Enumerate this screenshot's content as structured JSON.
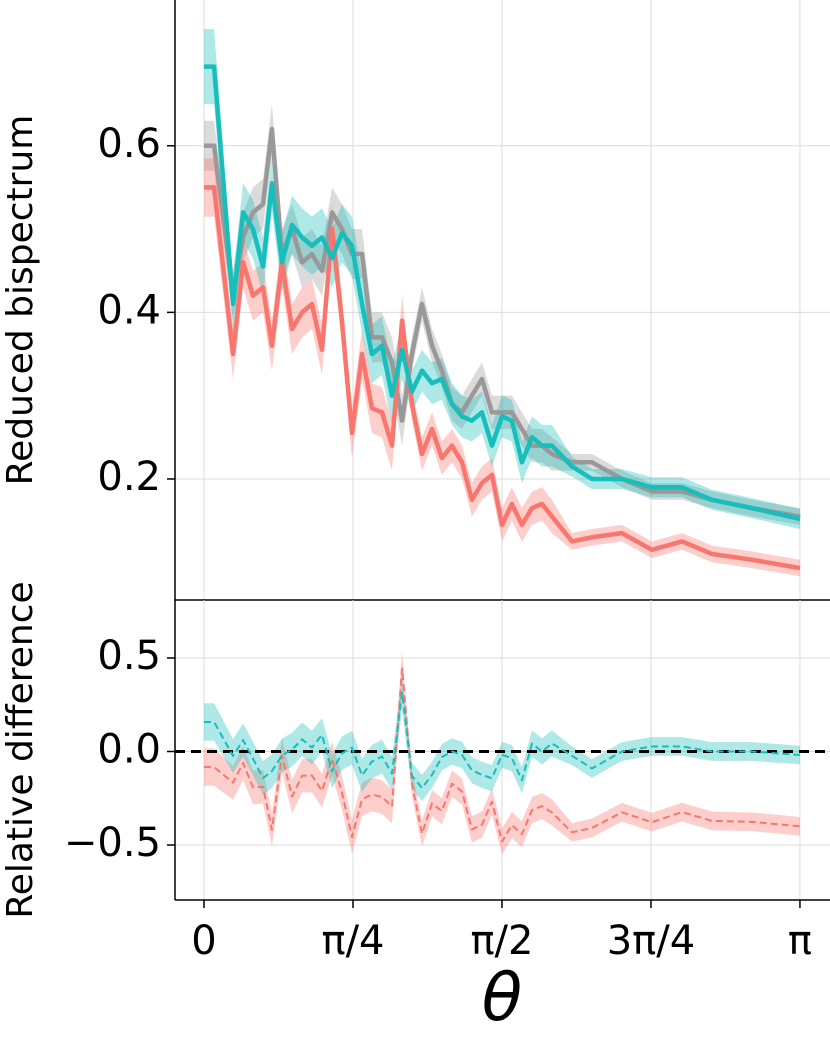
{
  "chart_data": [
    {
      "type": "line",
      "ylabel": "Reduced bispectrum",
      "x": [
        0,
        0.053,
        0.153,
        0.206,
        0.258,
        0.311,
        0.358,
        0.411,
        0.464,
        0.517,
        0.569,
        0.622,
        0.675,
        0.727,
        0.78,
        0.833,
        0.885,
        0.938,
        0.991,
        1.044,
        1.096,
        1.149,
        1.202,
        1.254,
        1.307,
        1.36,
        1.412,
        1.465,
        1.518,
        1.571,
        1.623,
        1.676,
        1.729,
        1.782,
        1.834,
        1.94,
        2.045,
        2.203,
        2.361,
        2.52,
        2.678,
        2.888,
        3.142
      ],
      "ylim": [
        0.0547,
        0.775
      ],
      "yticks": [
        0.2,
        0.4,
        0.6
      ],
      "grid": true,
      "linestyle": "solid",
      "series": [
        {
          "color": "#999999",
          "values": [
            0.6,
            0.6,
            0.42,
            0.49,
            0.52,
            0.53,
            0.62,
            0.47,
            0.5,
            0.46,
            0.47,
            0.45,
            0.52,
            0.5,
            0.47,
            0.47,
            0.37,
            0.37,
            0.34,
            0.27,
            0.35,
            0.41,
            0.36,
            0.33,
            0.29,
            0.28,
            0.3,
            0.32,
            0.28,
            0.28,
            0.28,
            0.26,
            0.24,
            0.24,
            0.23,
            0.22,
            0.22,
            0.2,
            0.185,
            0.185,
            0.175,
            0.165,
            0.155
          ],
          "errors": [
            0.03,
            0.03,
            0.03,
            0.03,
            0.03,
            0.03,
            0.03,
            0.03,
            0.03,
            0.03,
            0.03,
            0.03,
            0.03,
            0.03,
            0.03,
            0.03,
            0.03,
            0.03,
            0.03,
            0.03,
            0.02,
            0.02,
            0.02,
            0.02,
            0.02,
            0.02,
            0.02,
            0.02,
            0.02,
            0.02,
            0.02,
            0.02,
            0.02,
            0.02,
            0.02,
            0.01,
            0.01,
            0.01,
            0.01,
            0.01,
            0.01,
            0.01,
            0.01
          ]
        },
        {
          "color": "#f8766d",
          "values": [
            0.55,
            0.55,
            0.35,
            0.46,
            0.42,
            0.43,
            0.36,
            0.46,
            0.38,
            0.4,
            0.41,
            0.355,
            0.5,
            0.39,
            0.255,
            0.35,
            0.285,
            0.28,
            0.24,
            0.39,
            0.29,
            0.23,
            0.26,
            0.225,
            0.24,
            0.22,
            0.175,
            0.195,
            0.205,
            0.145,
            0.17,
            0.145,
            0.165,
            0.17,
            0.155,
            0.125,
            0.13,
            0.135,
            0.115,
            0.125,
            0.11,
            0.103,
            0.093
          ],
          "errors": [
            0.035,
            0.035,
            0.03,
            0.03,
            0.03,
            0.03,
            0.03,
            0.03,
            0.03,
            0.03,
            0.03,
            0.03,
            0.03,
            0.03,
            0.03,
            0.03,
            0.03,
            0.03,
            0.03,
            0.03,
            0.02,
            0.02,
            0.02,
            0.02,
            0.02,
            0.02,
            0.02,
            0.02,
            0.02,
            0.02,
            0.02,
            0.02,
            0.02,
            0.02,
            0.02,
            0.01,
            0.01,
            0.01,
            0.01,
            0.01,
            0.01,
            0.01,
            0.01
          ]
        },
        {
          "color": "#17bebb",
          "values": [
            0.695,
            0.695,
            0.41,
            0.52,
            0.5,
            0.455,
            0.555,
            0.46,
            0.505,
            0.49,
            0.48,
            0.49,
            0.465,
            0.495,
            0.48,
            0.41,
            0.35,
            0.36,
            0.3,
            0.355,
            0.305,
            0.33,
            0.315,
            0.32,
            0.29,
            0.275,
            0.27,
            0.28,
            0.24,
            0.275,
            0.27,
            0.22,
            0.25,
            0.24,
            0.24,
            0.215,
            0.2,
            0.2,
            0.19,
            0.19,
            0.175,
            0.165,
            0.152
          ],
          "errors": [
            0.045,
            0.045,
            0.035,
            0.035,
            0.035,
            0.035,
            0.035,
            0.035,
            0.035,
            0.035,
            0.035,
            0.035,
            0.035,
            0.035,
            0.035,
            0.035,
            0.035,
            0.035,
            0.035,
            0.035,
            0.025,
            0.025,
            0.025,
            0.025,
            0.025,
            0.025,
            0.025,
            0.025,
            0.025,
            0.025,
            0.025,
            0.025,
            0.025,
            0.025,
            0.025,
            0.012,
            0.012,
            0.012,
            0.012,
            0.012,
            0.012,
            0.012,
            0.012
          ]
        }
      ]
    },
    {
      "type": "line",
      "ylabel": "Relative difference",
      "xlabel": "θ",
      "x": [
        0,
        0.053,
        0.153,
        0.206,
        0.258,
        0.311,
        0.358,
        0.411,
        0.464,
        0.517,
        0.569,
        0.622,
        0.675,
        0.727,
        0.78,
        0.833,
        0.885,
        0.938,
        0.991,
        1.044,
        1.096,
        1.149,
        1.202,
        1.254,
        1.307,
        1.36,
        1.412,
        1.465,
        1.518,
        1.571,
        1.623,
        1.676,
        1.729,
        1.782,
        1.834,
        1.94,
        2.045,
        2.203,
        2.361,
        2.52,
        2.678,
        2.888,
        3.142
      ],
      "xlim": [
        -0.153,
        3.3
      ],
      "xticks": [
        {
          "value": 0,
          "label": "0"
        },
        {
          "value": 0.785398,
          "label": "π/4"
        },
        {
          "value": 1.570796,
          "label": "π/2"
        },
        {
          "value": 2.356194,
          "label": "3π/4"
        },
        {
          "value": 3.141593,
          "label": "π"
        }
      ],
      "ylim": [
        -0.794,
        0.81
      ],
      "yticks": [
        0.5,
        {
          "value": 0,
          "label": "0.0"
        },
        {
          "value": -0.5,
          "label": "−0.5"
        }
      ],
      "grid": true,
      "linestyle": "dashed",
      "hline": 0,
      "series": [
        {
          "color": "#f8766d",
          "values": [
            -0.083,
            -0.083,
            -0.167,
            -0.061,
            -0.192,
            -0.189,
            -0.419,
            -0.021,
            -0.24,
            -0.13,
            -0.128,
            -0.211,
            -0.038,
            -0.22,
            -0.457,
            -0.255,
            -0.23,
            -0.243,
            -0.294,
            0.444,
            -0.171,
            -0.439,
            -0.278,
            -0.318,
            -0.172,
            -0.214,
            -0.417,
            -0.391,
            -0.268,
            -0.482,
            -0.393,
            -0.442,
            -0.313,
            -0.292,
            -0.326,
            -0.432,
            -0.409,
            -0.325,
            -0.378,
            -0.324,
            -0.371,
            -0.376,
            -0.4
          ],
          "errors": [
            0.1,
            0.1,
            0.09,
            0.09,
            0.09,
            0.09,
            0.09,
            0.09,
            0.09,
            0.09,
            0.09,
            0.09,
            0.09,
            0.09,
            0.09,
            0.09,
            0.09,
            0.09,
            0.09,
            0.09,
            0.07,
            0.07,
            0.07,
            0.07,
            0.07,
            0.07,
            0.07,
            0.07,
            0.07,
            0.07,
            0.07,
            0.07,
            0.07,
            0.07,
            0.07,
            0.05,
            0.05,
            0.05,
            0.05,
            0.05,
            0.05,
            0.05,
            0.05
          ]
        },
        {
          "color": "#17bebb",
          "values": [
            0.158,
            0.158,
            -0.024,
            0.061,
            -0.038,
            -0.142,
            -0.105,
            -0.021,
            0.01,
            0.065,
            0.021,
            0.089,
            -0.106,
            -0.01,
            0.021,
            -0.128,
            -0.054,
            -0.027,
            -0.118,
            0.315,
            -0.129,
            -0.195,
            -0.125,
            -0.03,
            0,
            -0.018,
            -0.1,
            -0.125,
            -0.143,
            -0.018,
            -0.036,
            -0.154,
            0.042,
            0,
            0.043,
            -0.023,
            -0.091,
            0,
            0.027,
            0.027,
            0,
            0,
            -0.019
          ],
          "errors": [
            0.1,
            0.1,
            0.09,
            0.09,
            0.09,
            0.09,
            0.09,
            0.09,
            0.09,
            0.09,
            0.09,
            0.09,
            0.09,
            0.09,
            0.09,
            0.09,
            0.09,
            0.09,
            0.09,
            0.09,
            0.07,
            0.07,
            0.07,
            0.07,
            0.07,
            0.07,
            0.07,
            0.07,
            0.07,
            0.07,
            0.07,
            0.07,
            0.07,
            0.07,
            0.07,
            0.05,
            0.05,
            0.05,
            0.05,
            0.05,
            0.05,
            0.05,
            0.05
          ]
        }
      ]
    }
  ]
}
